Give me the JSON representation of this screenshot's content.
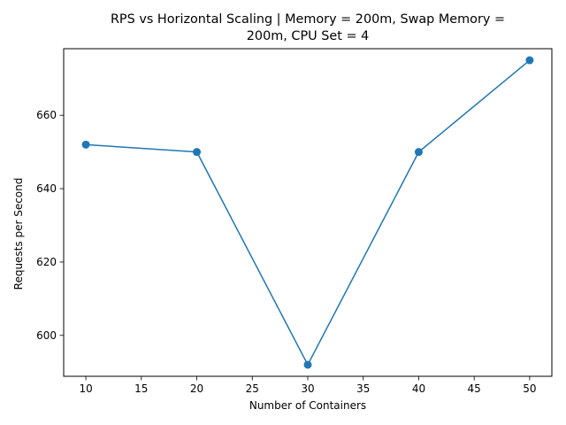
{
  "chart_data": {
    "type": "line",
    "title_line1": "RPS vs Horizontal Scaling | Memory = 200m, Swap Memory =",
    "title_line2": "200m, CPU Set = 4",
    "xlabel": "Number of Containers",
    "ylabel": "Requests per Second",
    "x": [
      10,
      20,
      30,
      40,
      50
    ],
    "series": [
      {
        "values": [
          652,
          650,
          592,
          650,
          675
        ],
        "color": "#1f77b4",
        "marker": "circle"
      }
    ],
    "xlim": [
      8,
      52
    ],
    "ylim": [
      588.85,
      678.15
    ],
    "xticks": [
      10,
      15,
      20,
      25,
      30,
      35,
      40,
      45,
      50
    ],
    "yticks": [
      600,
      620,
      640,
      660
    ],
    "grid": false,
    "legend": false
  }
}
